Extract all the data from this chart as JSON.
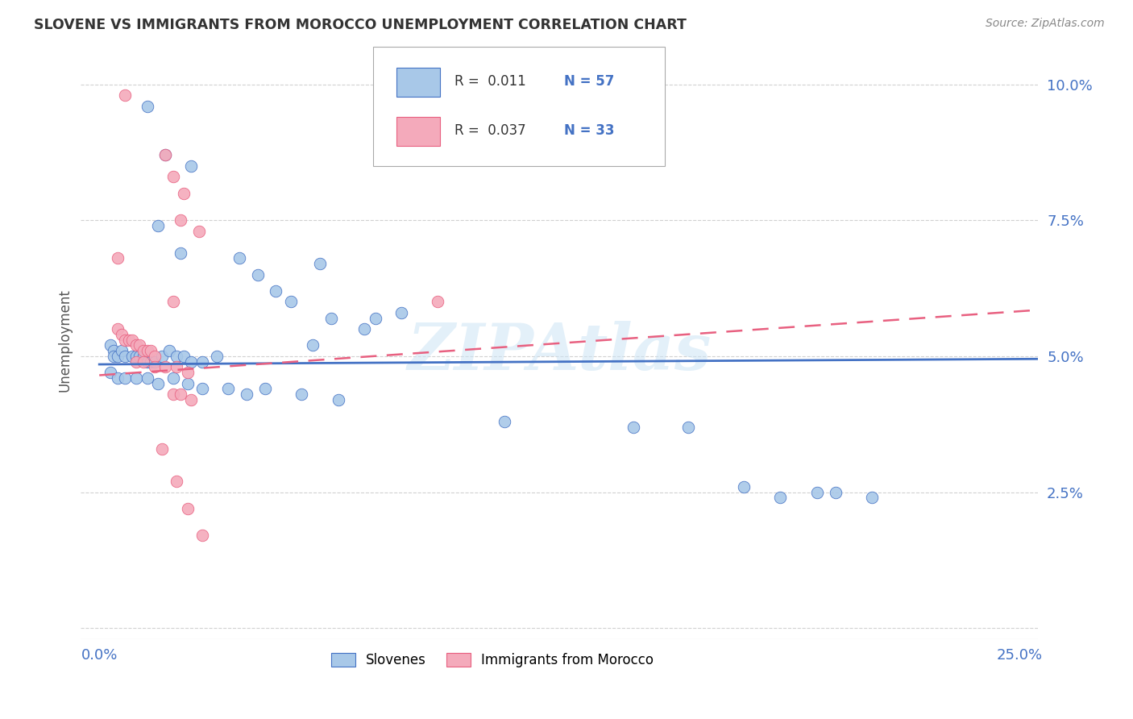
{
  "title": "SLOVENE VS IMMIGRANTS FROM MOROCCO UNEMPLOYMENT CORRELATION CHART",
  "source": "Source: ZipAtlas.com",
  "ylabel": "Unemployment",
  "y_ticks": [
    0.0,
    0.025,
    0.05,
    0.075,
    0.1
  ],
  "y_tick_labels": [
    "",
    "2.5%",
    "5.0%",
    "7.5%",
    "10.0%"
  ],
  "x_ticks": [
    0.0,
    0.05,
    0.1,
    0.15,
    0.2,
    0.25
  ],
  "x_tick_labels": [
    "0.0%",
    "",
    "",
    "",
    "",
    "25.0%"
  ],
  "xlim": [
    -0.005,
    0.255
  ],
  "ylim": [
    -0.002,
    0.108
  ],
  "color_blue": "#A8C8E8",
  "color_pink": "#F4AABB",
  "line_blue": "#4472C4",
  "line_pink": "#E86080",
  "background": "#FFFFFF",
  "watermark": "ZIPAtlas",
  "blue_points": [
    [
      0.013,
      0.096
    ],
    [
      0.018,
      0.087
    ],
    [
      0.025,
      0.085
    ],
    [
      0.016,
      0.074
    ],
    [
      0.022,
      0.069
    ],
    [
      0.038,
      0.068
    ],
    [
      0.043,
      0.065
    ],
    [
      0.048,
      0.062
    ],
    [
      0.052,
      0.06
    ],
    [
      0.06,
      0.067
    ],
    [
      0.063,
      0.057
    ],
    [
      0.072,
      0.055
    ],
    [
      0.075,
      0.057
    ],
    [
      0.082,
      0.058
    ],
    [
      0.058,
      0.052
    ],
    [
      0.003,
      0.052
    ],
    [
      0.004,
      0.051
    ],
    [
      0.004,
      0.05
    ],
    [
      0.005,
      0.05
    ],
    [
      0.006,
      0.051
    ],
    [
      0.007,
      0.05
    ],
    [
      0.009,
      0.05
    ],
    [
      0.01,
      0.05
    ],
    [
      0.011,
      0.05
    ],
    [
      0.012,
      0.05
    ],
    [
      0.013,
      0.049
    ],
    [
      0.014,
      0.049
    ],
    [
      0.015,
      0.049
    ],
    [
      0.017,
      0.05
    ],
    [
      0.019,
      0.051
    ],
    [
      0.021,
      0.05
    ],
    [
      0.023,
      0.05
    ],
    [
      0.025,
      0.049
    ],
    [
      0.028,
      0.049
    ],
    [
      0.032,
      0.05
    ],
    [
      0.003,
      0.047
    ],
    [
      0.005,
      0.046
    ],
    [
      0.007,
      0.046
    ],
    [
      0.01,
      0.046
    ],
    [
      0.013,
      0.046
    ],
    [
      0.016,
      0.045
    ],
    [
      0.02,
      0.046
    ],
    [
      0.024,
      0.045
    ],
    [
      0.028,
      0.044
    ],
    [
      0.035,
      0.044
    ],
    [
      0.04,
      0.043
    ],
    [
      0.045,
      0.044
    ],
    [
      0.055,
      0.043
    ],
    [
      0.065,
      0.042
    ],
    [
      0.11,
      0.038
    ],
    [
      0.145,
      0.037
    ],
    [
      0.16,
      0.037
    ],
    [
      0.175,
      0.026
    ],
    [
      0.185,
      0.024
    ],
    [
      0.195,
      0.025
    ],
    [
      0.2,
      0.025
    ],
    [
      0.21,
      0.024
    ]
  ],
  "pink_points": [
    [
      0.007,
      0.098
    ],
    [
      0.018,
      0.087
    ],
    [
      0.02,
      0.083
    ],
    [
      0.023,
      0.08
    ],
    [
      0.022,
      0.075
    ],
    [
      0.027,
      0.073
    ],
    [
      0.005,
      0.068
    ],
    [
      0.02,
      0.06
    ],
    [
      0.005,
      0.055
    ],
    [
      0.006,
      0.054
    ],
    [
      0.007,
      0.053
    ],
    [
      0.008,
      0.053
    ],
    [
      0.009,
      0.053
    ],
    [
      0.01,
      0.052
    ],
    [
      0.011,
      0.052
    ],
    [
      0.012,
      0.051
    ],
    [
      0.013,
      0.051
    ],
    [
      0.014,
      0.051
    ],
    [
      0.015,
      0.05
    ],
    [
      0.01,
      0.049
    ],
    [
      0.012,
      0.049
    ],
    [
      0.015,
      0.048
    ],
    [
      0.018,
      0.048
    ],
    [
      0.021,
      0.048
    ],
    [
      0.024,
      0.047
    ],
    [
      0.092,
      0.06
    ],
    [
      0.02,
      0.043
    ],
    [
      0.022,
      0.043
    ],
    [
      0.025,
      0.042
    ],
    [
      0.017,
      0.033
    ],
    [
      0.021,
      0.027
    ],
    [
      0.024,
      0.022
    ],
    [
      0.028,
      0.017
    ]
  ],
  "blue_trend_x": [
    0.0,
    0.255
  ],
  "blue_trend_y": [
    0.0485,
    0.0495
  ],
  "pink_trend_x": [
    0.0,
    0.255
  ],
  "pink_trend_y": [
    0.0465,
    0.0585
  ]
}
